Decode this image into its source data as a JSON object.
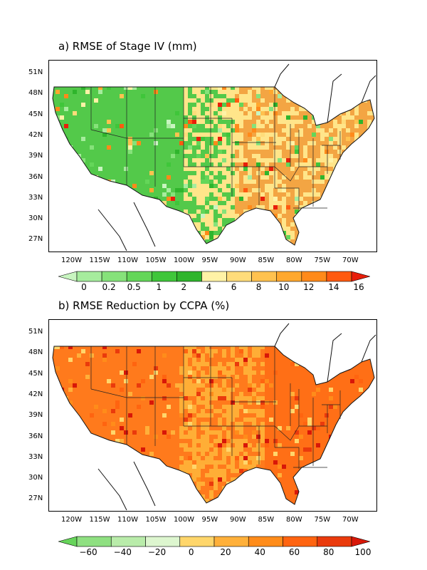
{
  "panels": [
    {
      "title": "a) RMSE of Stage IV (mm)",
      "lat_labels": [
        "51N",
        "48N",
        "45N",
        "42N",
        "39N",
        "36N",
        "33N",
        "30N",
        "27N"
      ],
      "lon_labels": [
        "120W",
        "115W",
        "110W",
        "105W",
        "100W",
        "95W",
        "90W",
        "85W",
        "80W",
        "75W",
        "70W"
      ],
      "colorbar": {
        "labels": [
          "0",
          "0.2",
          "0.5",
          "1",
          "2",
          "4",
          "6",
          "8",
          "10",
          "12",
          "14",
          "16"
        ],
        "colors": [
          "#c8f5c0",
          "#a6ec9d",
          "#86e27a",
          "#64d659",
          "#3fc63a",
          "#2fb52c",
          "#fff2a6",
          "#ffdc7a",
          "#ffc24f",
          "#ffa82e",
          "#ff8a1a",
          "#ff5a10",
          "#e81e0a"
        ]
      },
      "dominant_colors": {
        "west": "#53c94a",
        "central": "#ffe58a",
        "east": "#f3a543"
      }
    },
    {
      "title": "b) RMSE Reduction by CCPA (%)",
      "lat_labels": [
        "51N",
        "48N",
        "45N",
        "42N",
        "39N",
        "36N",
        "33N",
        "30N",
        "27N"
      ],
      "lon_labels": [
        "120W",
        "115W",
        "110W",
        "105W",
        "100W",
        "95W",
        "90W",
        "85W",
        "80W",
        "75W",
        "70W"
      ],
      "colorbar": {
        "labels": [
          "−60",
          "−40",
          "−20",
          "0",
          "20",
          "40",
          "60",
          "80",
          "100"
        ],
        "colors": [
          "#66d45a",
          "#8fe081",
          "#b9ecaa",
          "#ddf6cf",
          "#ffd66b",
          "#ffb03a",
          "#ff8c1a",
          "#ff6410",
          "#ea3a0c",
          "#d81708"
        ]
      },
      "dominant_colors": {
        "west": "#ff7a1c",
        "central": "#ffae36",
        "east": "#ff6f16"
      }
    }
  ]
}
